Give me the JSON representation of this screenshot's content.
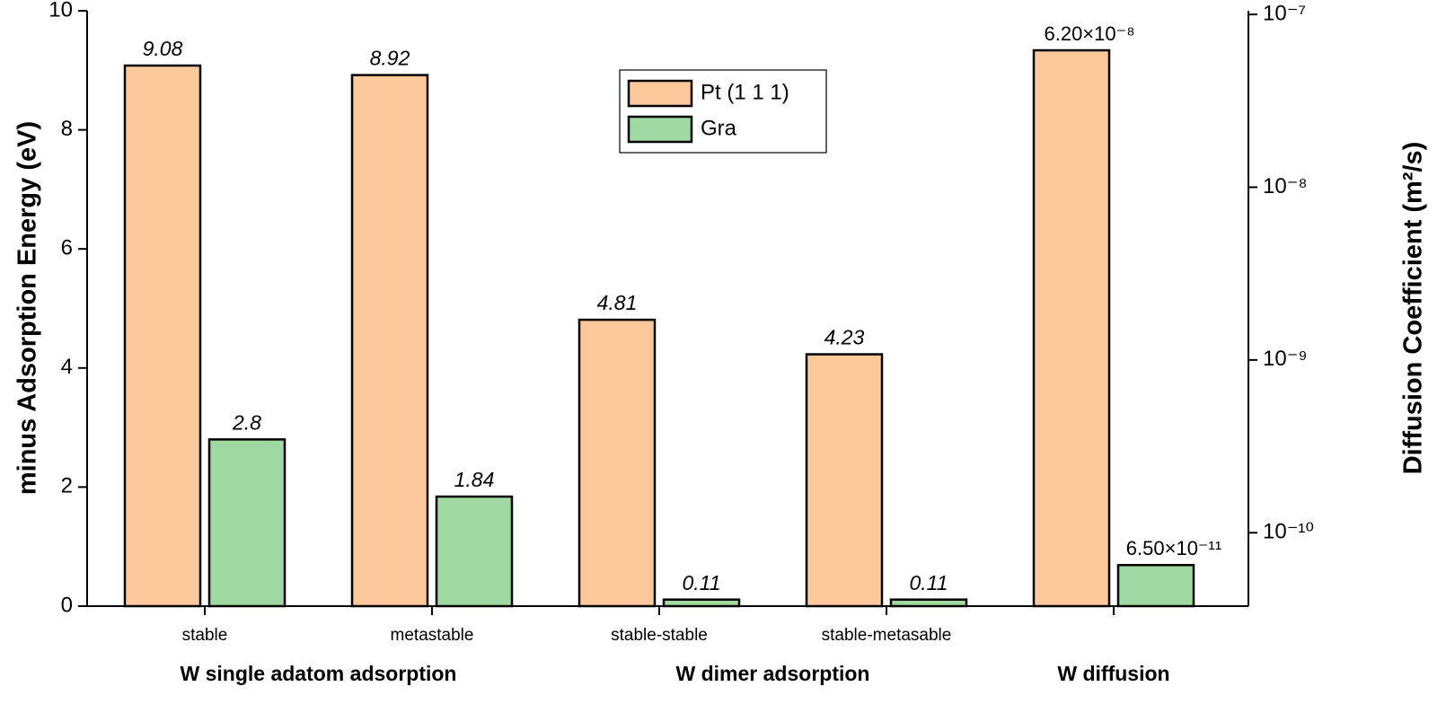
{
  "chart_data": {
    "type": "bar",
    "ylabel": "minus Adsorption Energy (eV)",
    "y2label": "Diffusion Coefficient (m²/s)",
    "categories": [
      "stable",
      "metastable",
      "stable-stable",
      "stable-metasable",
      null
    ],
    "groups": [
      {
        "label": "W single adatom adsorption",
        "span": [
          0,
          1
        ]
      },
      {
        "label": "W dimer adsorption",
        "span": [
          2,
          3
        ]
      },
      {
        "label": "W diffusion",
        "span": [
          4,
          4
        ]
      }
    ],
    "series": [
      {
        "name": "Pt (1 1 1)",
        "color": "#fdc89a",
        "values": [
          9.08,
          8.92,
          4.81,
          4.23,
          null
        ],
        "y2_values": [
          null,
          null,
          null,
          null,
          6.2e-08
        ],
        "y2_value_labels": [
          null,
          null,
          null,
          null,
          "6.20×10⁻⁸"
        ]
      },
      {
        "name": "Gra",
        "color": "#9fd8a0",
        "values": [
          2.8,
          1.84,
          0.11,
          0.11,
          null
        ],
        "y2_values": [
          null,
          null,
          null,
          null,
          6.5e-11
        ],
        "y2_value_labels": [
          null,
          null,
          null,
          null,
          "6.50×10⁻¹¹"
        ]
      }
    ],
    "ylim": [
      0,
      10
    ],
    "yticks": [
      0,
      2,
      4,
      6,
      8,
      10
    ],
    "y2lim": [
      3.76e-11,
      1.05e-07
    ],
    "y2log": true,
    "y2ticks": [
      {
        "value": 1e-10,
        "label": "10⁻¹⁰"
      },
      {
        "value": 1e-09,
        "label": "10⁻⁹"
      },
      {
        "value": 1e-08,
        "label": "10⁻⁸"
      },
      {
        "value": 1e-07,
        "label": "10⁻⁷"
      }
    ],
    "legend": "top-center"
  }
}
